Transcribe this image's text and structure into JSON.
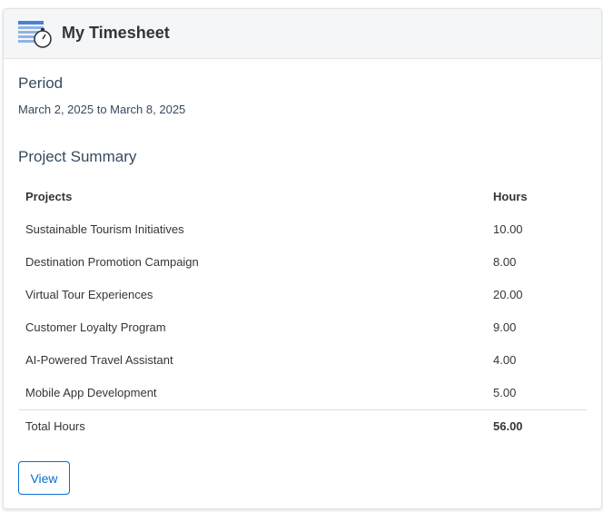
{
  "header": {
    "title": "My Timesheet"
  },
  "period": {
    "label": "Period",
    "range": "March 2, 2025 to March 8, 2025"
  },
  "summary": {
    "title": "Project Summary",
    "table": {
      "columns": [
        "Projects",
        "Hours"
      ],
      "rows": [
        [
          "Sustainable Tourism Initiatives",
          "10.00"
        ],
        [
          "Destination Promotion Campaign",
          "8.00"
        ],
        [
          "Virtual Tour Experiences",
          "20.00"
        ],
        [
          "Customer Loyalty Program",
          "9.00"
        ],
        [
          "AI-Powered Travel Assistant",
          "4.00"
        ],
        [
          "Mobile App Development",
          "5.00"
        ]
      ],
      "total": [
        "Total Hours",
        "56.00"
      ]
    }
  },
  "actions": {
    "view": "View"
  }
}
